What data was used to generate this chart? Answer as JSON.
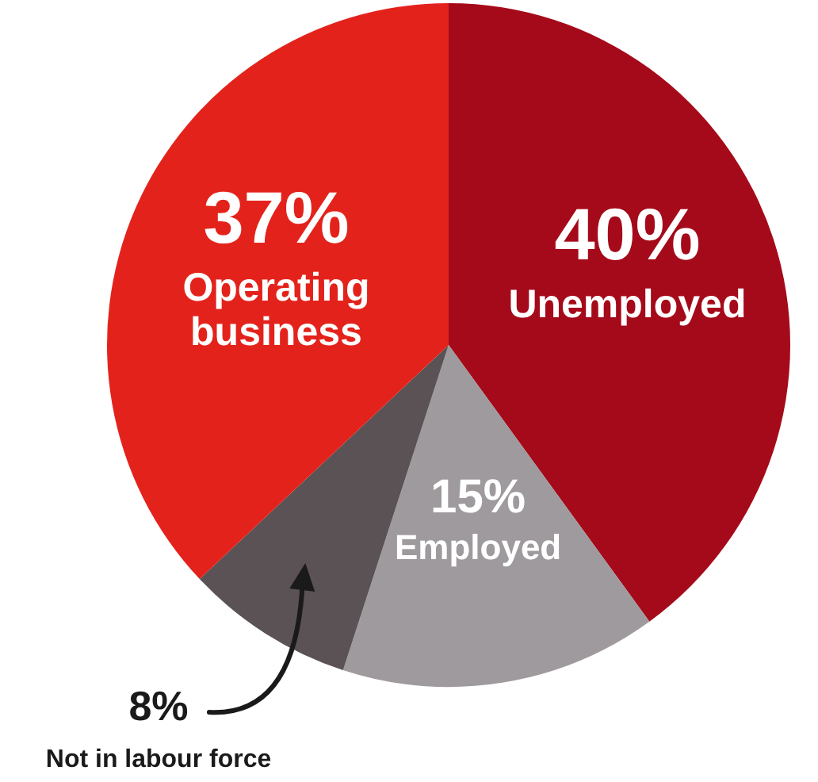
{
  "chart_data": {
    "type": "pie",
    "categories": [
      "Unemployed",
      "Employed",
      "Not in labour force",
      "Operating business"
    ],
    "values": [
      40,
      15,
      8,
      37
    ],
    "value_labels": [
      "40%",
      "15%",
      "8%",
      "37%"
    ],
    "colors": [
      "#a50a1a",
      "#9e9a9d",
      "#5a5255",
      "#e3231b"
    ],
    "legend": false
  }
}
